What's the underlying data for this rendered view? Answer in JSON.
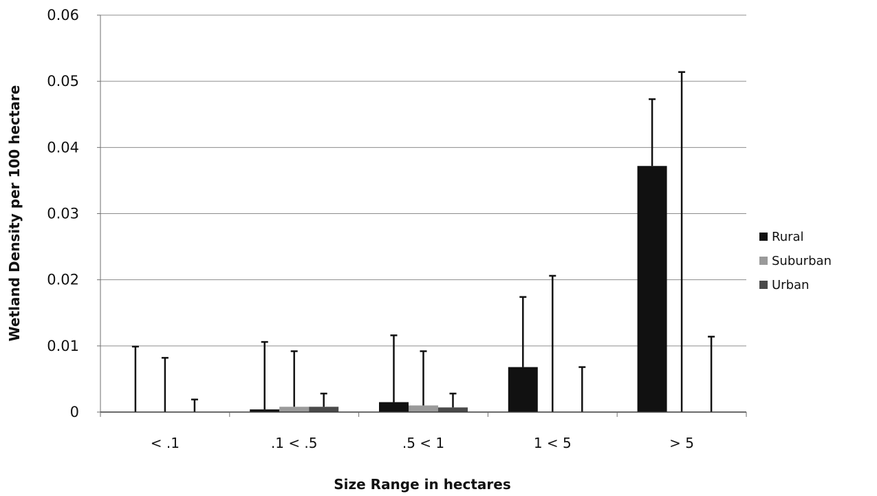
{
  "chart_data": {
    "type": "bar",
    "title": "",
    "xlabel": "Size Range in hectares",
    "ylabel": "Wetland Density per 100 hectare",
    "ylim": [
      0,
      0.06
    ],
    "yticks": [
      "0",
      "0.01",
      "0.02",
      "0.03",
      "0.04",
      "0.05",
      "0.06"
    ],
    "categories": [
      "< .1",
      ".1 < .5",
      ".5 < 1",
      "1 < 5",
      "> 5"
    ],
    "series": [
      {
        "name": "Rural",
        "color": "#111111",
        "values": [
          0.0,
          0.0004,
          0.0015,
          0.0068,
          0.0372
        ],
        "error_top": [
          0.0099,
          0.0106,
          0.0116,
          0.0174,
          0.0473
        ]
      },
      {
        "name": "Suburban",
        "color": "#9a9a9a",
        "values": [
          0.0,
          0.0008,
          0.001,
          0.0,
          0.0
        ],
        "error_top": [
          0.0082,
          0.0092,
          0.0092,
          0.0206,
          0.0514
        ]
      },
      {
        "name": "Urban",
        "color": "#4a4a4a",
        "values": [
          0.0,
          0.0008,
          0.0007,
          0.0,
          0.0
        ],
        "error_top": [
          0.0019,
          0.0028,
          0.0028,
          0.0068,
          0.0114
        ]
      }
    ],
    "grid": true,
    "legend": "right"
  }
}
